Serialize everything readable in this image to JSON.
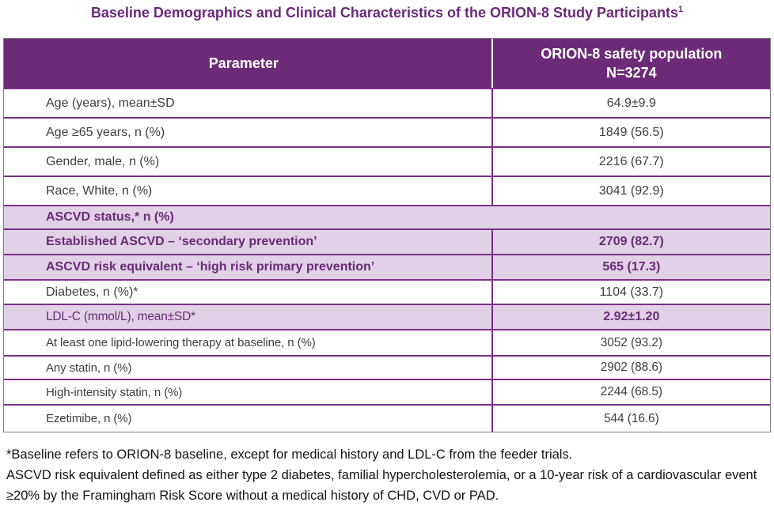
{
  "page": {
    "title": "Baseline Demographics and Clinical Characteristics of the ORION-8 Study Participants",
    "title_superscript": "1"
  },
  "table": {
    "header": {
      "col1": "Parameter",
      "col2_line1": "ORION-8 safety population",
      "col2_line2": "N=3274"
    },
    "rows": [
      {
        "label": "Age (years), mean±SD",
        "value": "64.9±9.9"
      },
      {
        "label": "Age ≥65 years, n (%)",
        "value": "1849 (56.5)"
      },
      {
        "label": "Gender, male, n (%)",
        "value": "2216 (67.7)"
      },
      {
        "label": "Race, White, n (%)",
        "value": "3041 (92.9)"
      },
      {
        "label": "ASCVD status,* n (%)",
        "value": ""
      },
      {
        "label": "Established ASCVD – ‘secondary prevention’",
        "value": "2709 (82.7)"
      },
      {
        "label": "ASCVD risk equivalent – ‘high risk primary prevention’",
        "value": "565 (17.3)"
      },
      {
        "label": "Diabetes, n (%)*",
        "value": "1104 (33.7)"
      },
      {
        "label": "LDL-C (mmol/L), mean±SD*",
        "value": "2.92±1.20"
      },
      {
        "label": "At least one lipid-lowering therapy at baseline, n (%)",
        "value": "3052 (93.2)"
      },
      {
        "label": "Any statin, n (%)",
        "value": "2902 (88.6)"
      },
      {
        "label": "High-intensity statin, n (%)",
        "value": "2244 (68.5)"
      },
      {
        "label": "Ezetimibe, n (%)",
        "value": "544 (16.6)"
      }
    ]
  },
  "footnotes": {
    "line1": "*Baseline refers to ORION-8 baseline, except for medical history and LDL-C from the feeder trials.",
    "line2": "ASCVD risk equivalent defined as either type 2 diabetes, familial hypercholesterolemia, or a 10-year risk of a cardiovascular event ≥20% by the Framingham Risk Score without a medical history of CHD, CVD or PAD."
  },
  "colors": {
    "header_bg": "#6C2B76",
    "highlight_row_bg": "#E0D1E6",
    "border_purple": "#7B3087",
    "purple_text": "#6B2A78",
    "body_text": "#3E3E3E"
  }
}
